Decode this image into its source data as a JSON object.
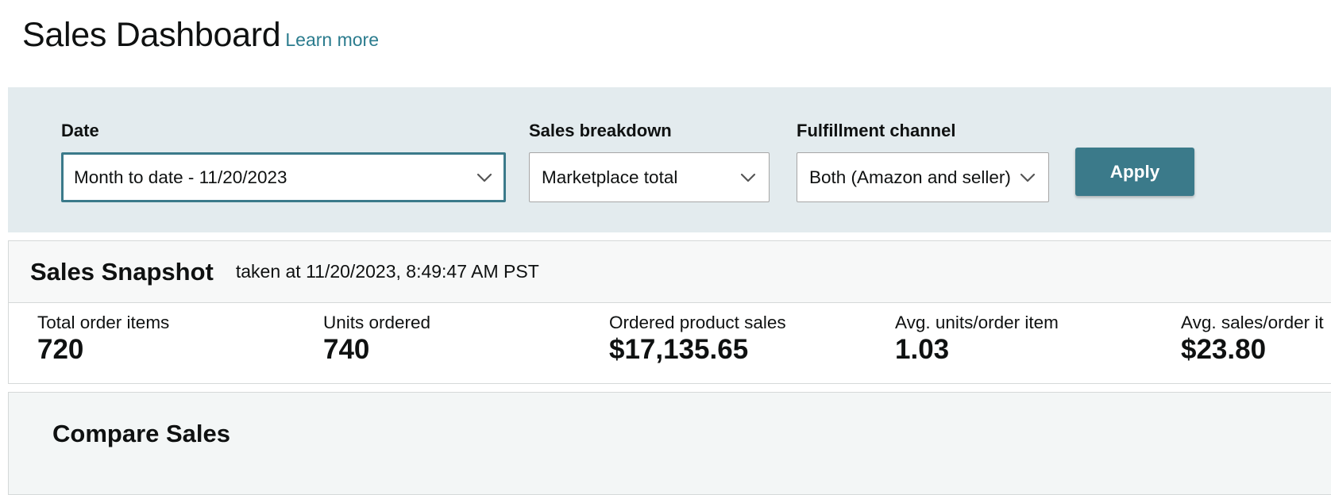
{
  "header": {
    "title": "Sales Dashboard",
    "learn_more": "Learn more"
  },
  "filters": {
    "date": {
      "label": "Date",
      "value": "Month to date - 11/20/2023"
    },
    "sales_breakdown": {
      "label": "Sales breakdown",
      "value": "Marketplace total"
    },
    "fulfillment_channel": {
      "label": "Fulfillment channel",
      "value": "Both (Amazon and seller)"
    },
    "apply_label": "Apply"
  },
  "snapshot": {
    "title": "Sales Snapshot",
    "taken_at": "taken at 11/20/2023, 8:49:47 AM PST",
    "metrics": [
      {
        "label": "Total order items",
        "value": "720"
      },
      {
        "label": "Units ordered",
        "value": "740"
      },
      {
        "label": "Ordered product sales",
        "value": "$17,135.65"
      },
      {
        "label": "Avg. units/order item",
        "value": "1.03"
      },
      {
        "label": "Avg. sales/order it",
        "value": "$23.80"
      }
    ]
  },
  "compare": {
    "title": "Compare Sales"
  },
  "colors": {
    "accent": "#3b7a8a",
    "link": "#2b7c8e",
    "filter_bg": "#e3ebee",
    "text": "#0f1111"
  },
  "icons": {
    "dropdown": "chevron-down-icon"
  }
}
